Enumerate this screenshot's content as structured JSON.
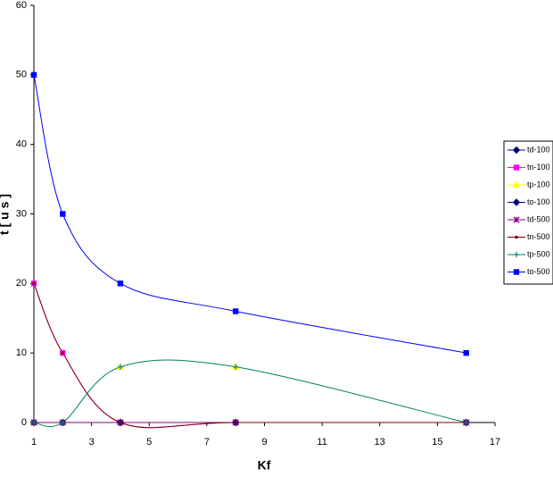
{
  "chart_data": {
    "type": "line",
    "smooth": true,
    "x_label": "Kf",
    "y_label": "t [ u s ]",
    "x": [
      1,
      2,
      4,
      8,
      16
    ],
    "xlim": [
      1,
      17
    ],
    "xticks": [
      1,
      3,
      5,
      7,
      9,
      11,
      13,
      15,
      17
    ],
    "ylim": [
      0,
      60
    ],
    "yticks": [
      0,
      10,
      20,
      30,
      40,
      50,
      60
    ],
    "grid": false,
    "legend": "right",
    "series": [
      {
        "name": "td-100",
        "color": "#000080",
        "marker": "diamond",
        "values": [
          0,
          0,
          0,
          0,
          0
        ]
      },
      {
        "name": "tn-100",
        "color": "#ff00ff",
        "marker": "square",
        "values": [
          20,
          10,
          0,
          0,
          0
        ]
      },
      {
        "name": "tp-100",
        "color": "#ffff00",
        "marker": "triangle",
        "values": [
          0,
          0,
          8,
          8,
          0
        ]
      },
      {
        "name": "to-100",
        "color": "#000080",
        "marker": "diamond",
        "values": [
          0,
          0,
          0,
          0,
          0
        ]
      },
      {
        "name": "td-500",
        "color": "#800080",
        "marker": "star",
        "values": [
          0,
          0,
          0,
          0,
          0
        ]
      },
      {
        "name": "tn-500",
        "color": "#800000",
        "marker": "circle",
        "values": [
          20,
          10,
          0,
          0,
          0
        ]
      },
      {
        "name": "tp-500",
        "color": "#008080",
        "marker": "plus",
        "values": [
          0,
          0,
          8,
          8,
          0
        ]
      },
      {
        "name": "to-500",
        "color": "#0000ff",
        "marker": "square",
        "values": [
          50,
          30,
          20,
          16,
          10
        ]
      }
    ]
  }
}
